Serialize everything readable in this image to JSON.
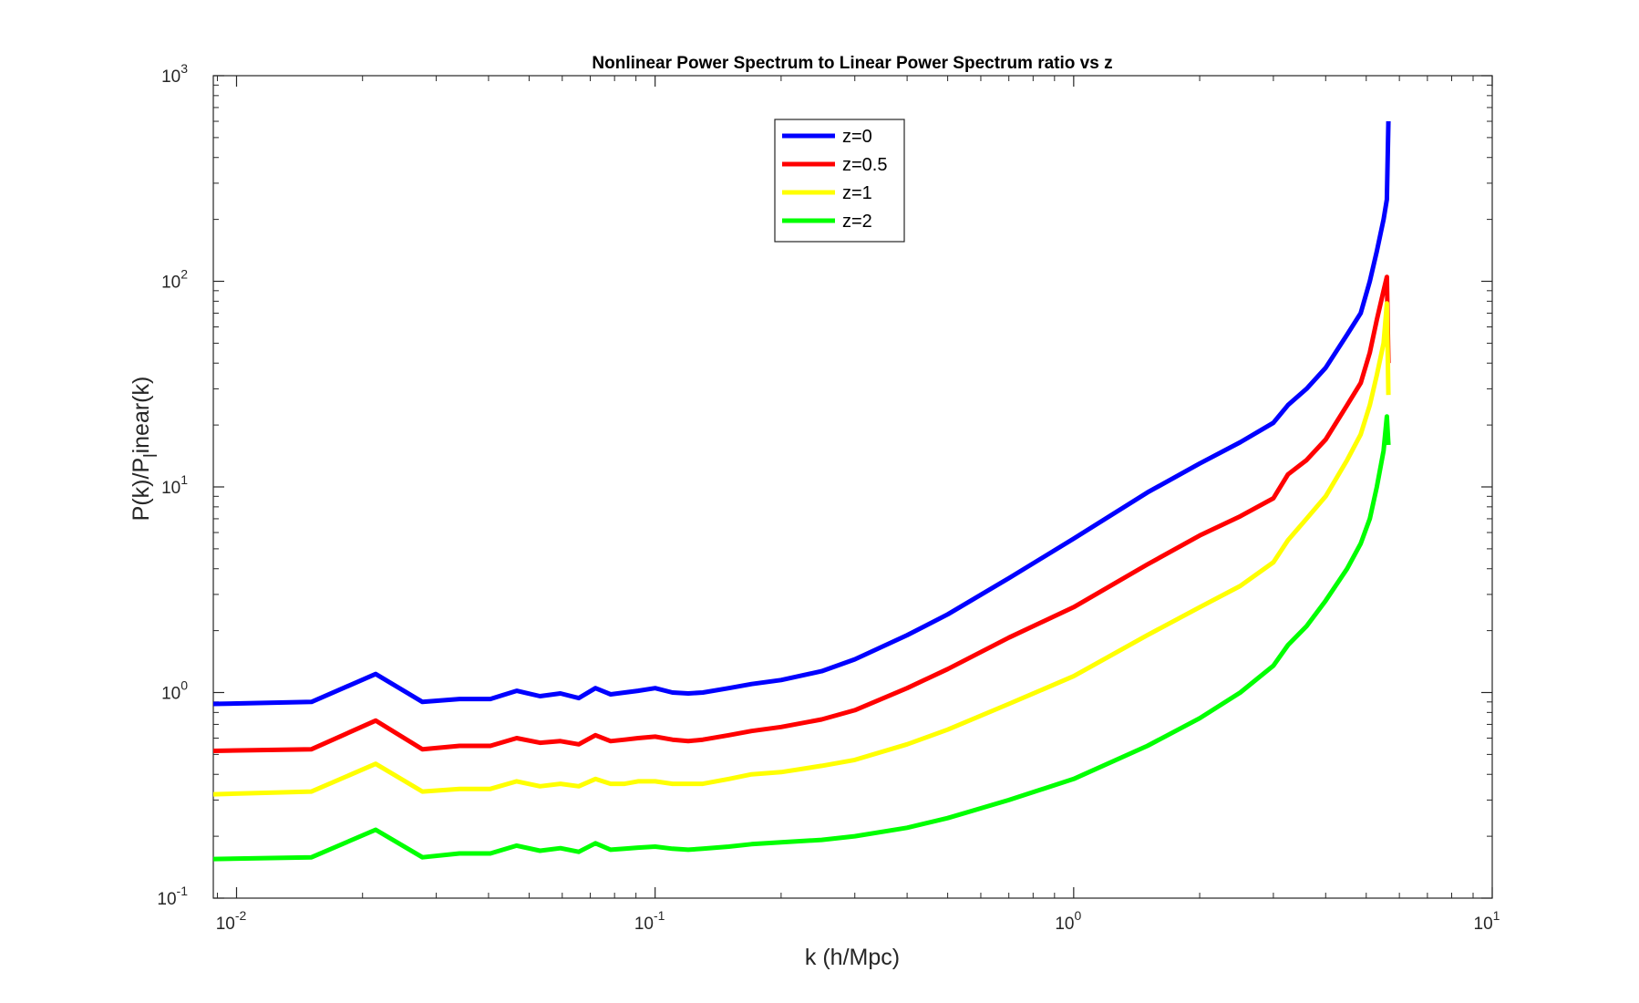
{
  "chart_data": {
    "type": "line",
    "title": "Nonlinear Power Spectrum to Linear Power Spectrum ratio vs z",
    "xlabel": "k (h/Mpc)",
    "ylabel": "P(k)/P_linear(k)",
    "xscale": "log",
    "yscale": "log",
    "xlim": [
      0.0088,
      10
    ],
    "ylim": [
      0.1,
      1000
    ],
    "xticks": [
      0.01,
      0.1,
      1,
      10
    ],
    "xtick_labels": [
      {
        "base": "10",
        "exp": "-2"
      },
      {
        "base": "10",
        "exp": "-1"
      },
      {
        "base": "10",
        "exp": "0"
      },
      {
        "base": "10",
        "exp": "1"
      }
    ],
    "yticks": [
      0.1,
      1,
      10,
      100,
      1000
    ],
    "ytick_labels": [
      {
        "base": "10",
        "exp": "-1"
      },
      {
        "base": "10",
        "exp": "0"
      },
      {
        "base": "10",
        "exp": "1"
      },
      {
        "base": "10",
        "exp": "2"
      },
      {
        "base": "10",
        "exp": "3"
      }
    ],
    "grid": false,
    "legend_position": "top-center",
    "x": [
      0.0088,
      0.0151,
      0.0215,
      0.0278,
      0.0341,
      0.0404,
      0.0467,
      0.0531,
      0.0594,
      0.0657,
      0.072,
      0.0783,
      0.0846,
      0.091,
      0.1,
      0.11,
      0.12,
      0.13,
      0.15,
      0.17,
      0.2,
      0.25,
      0.3,
      0.4,
      0.5,
      0.7,
      1.0,
      1.5,
      2.0,
      2.5,
      3.0,
      3.25,
      3.6,
      4.0,
      4.5,
      4.85,
      5.1,
      5.3,
      5.5,
      5.6,
      5.65
    ],
    "series": [
      {
        "name": "z=0",
        "color": "#0000ff",
        "values": [
          0.88,
          0.9,
          1.23,
          0.9,
          0.93,
          0.93,
          1.02,
          0.96,
          0.99,
          0.94,
          1.05,
          0.98,
          1.0,
          1.02,
          1.05,
          1.0,
          0.99,
          1.0,
          1.05,
          1.1,
          1.15,
          1.27,
          1.45,
          1.9,
          2.4,
          3.6,
          5.6,
          9.4,
          13.0,
          16.5,
          20.5,
          25.0,
          30.0,
          38.0,
          55.0,
          70.0,
          100.0,
          140.0,
          200.0,
          250.0,
          600.0
        ]
      },
      {
        "name": "z=0.5",
        "color": "#ff0000",
        "values": [
          0.52,
          0.53,
          0.73,
          0.53,
          0.55,
          0.55,
          0.6,
          0.57,
          0.58,
          0.56,
          0.62,
          0.58,
          0.59,
          0.6,
          0.61,
          0.59,
          0.58,
          0.59,
          0.62,
          0.65,
          0.68,
          0.74,
          0.82,
          1.05,
          1.3,
          1.85,
          2.6,
          4.2,
          5.8,
          7.2,
          8.8,
          11.5,
          13.5,
          17.0,
          25.0,
          32.0,
          45.0,
          65.0,
          90.0,
          105.0,
          40.0
        ]
      },
      {
        "name": "z=1",
        "color": "#ffff00",
        "values": [
          0.32,
          0.33,
          0.45,
          0.33,
          0.34,
          0.34,
          0.37,
          0.35,
          0.36,
          0.35,
          0.38,
          0.36,
          0.36,
          0.37,
          0.37,
          0.36,
          0.36,
          0.36,
          0.38,
          0.4,
          0.41,
          0.44,
          0.47,
          0.56,
          0.66,
          0.88,
          1.2,
          1.9,
          2.6,
          3.3,
          4.3,
          5.5,
          7.0,
          9.0,
          13.5,
          18.0,
          25.0,
          35.0,
          50.0,
          78.0,
          28.0
        ]
      },
      {
        "name": "z=2",
        "color": "#00ff00",
        "values": [
          0.155,
          0.158,
          0.215,
          0.158,
          0.165,
          0.165,
          0.18,
          0.17,
          0.175,
          0.168,
          0.185,
          0.172,
          0.174,
          0.176,
          0.178,
          0.174,
          0.172,
          0.174,
          0.178,
          0.183,
          0.187,
          0.192,
          0.2,
          0.22,
          0.245,
          0.3,
          0.38,
          0.55,
          0.75,
          1.0,
          1.35,
          1.7,
          2.1,
          2.8,
          4.0,
          5.3,
          7.0,
          10.0,
          15.0,
          22.0,
          16.0
        ]
      }
    ]
  }
}
